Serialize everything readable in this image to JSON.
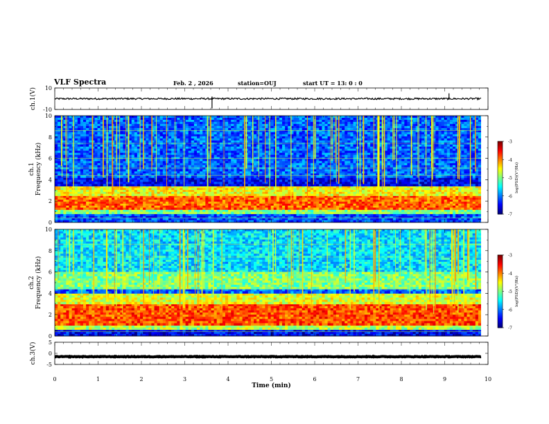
{
  "header": {
    "title": "VLF Spectra",
    "date": "Feb. 2  , 2026",
    "station": "station=OUJ",
    "start": "start  UT  =   13: 0  : 0"
  },
  "chart_data": {
    "type": "heatmap",
    "title": "VLF Spectra",
    "xlabel": "Time  (min)",
    "xlim": [
      0,
      10
    ],
    "xticks": [
      "0",
      "1",
      "2",
      "3",
      "4",
      "5",
      "6",
      "7",
      "8",
      "9",
      "10"
    ],
    "panels": [
      {
        "name": "ch1-waveform",
        "kind": "line",
        "ylabel": "ch.1(V)",
        "ylim": [
          -10,
          10
        ],
        "yticks": [
          "10",
          "-10"
        ],
        "baseline": 0
      },
      {
        "name": "ch1-spectrogram",
        "kind": "spectrogram",
        "ylabel_top": "ch.1",
        "ylabel": "Frequency  (kHz)",
        "ylim": [
          0,
          10
        ],
        "yticks": [
          "0",
          "2",
          "4",
          "6",
          "8",
          "10"
        ],
        "bands": [
          [
            0,
            0.8,
            0.2
          ],
          [
            0.8,
            1.2,
            0.5
          ],
          [
            1.2,
            2.5,
            0.78
          ],
          [
            2.5,
            3.4,
            0.62
          ],
          [
            3.4,
            4.2,
            0.12
          ],
          [
            4.2,
            10,
            0.22
          ]
        ]
      },
      {
        "name": "ch2-spectrogram",
        "kind": "spectrogram",
        "ylabel_top": "ch.2",
        "ylabel": "Frequency  (kHz)",
        "ylim": [
          0,
          10
        ],
        "yticks": [
          "0",
          "2",
          "4",
          "6",
          "8",
          "10"
        ],
        "bands": [
          [
            0,
            0.6,
            0.12
          ],
          [
            0.6,
            1.0,
            0.55
          ],
          [
            1.0,
            3.0,
            0.8
          ],
          [
            3.0,
            4.0,
            0.6
          ],
          [
            4.0,
            4.4,
            0.22
          ],
          [
            4.4,
            6.0,
            0.5
          ],
          [
            6.0,
            10,
            0.35
          ]
        ]
      },
      {
        "name": "ch3-waveform",
        "kind": "line",
        "ylabel": "ch.3(V)",
        "ylim": [
          -5,
          5
        ],
        "yticks": [
          "5",
          "0",
          "-5"
        ],
        "baseline": -1.5
      }
    ],
    "colorbar": {
      "label": "log(PSD)(V²/Hz)",
      "range": [
        -7,
        -3
      ],
      "ticks": [
        "-3",
        "-4",
        "-5",
        "-6",
        "-7"
      ],
      "colormap": "jet"
    },
    "xlim_data_minutes": 9.8
  },
  "colors": {
    "low": "#000080",
    "mid": "#00ff80",
    "high": "#ff0000"
  }
}
